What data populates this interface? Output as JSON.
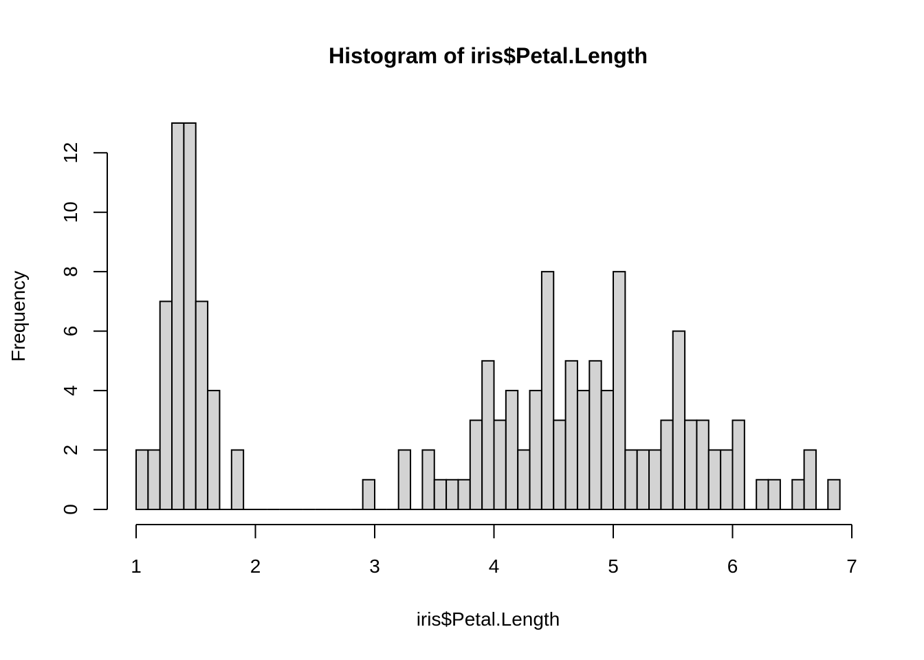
{
  "chart_data": {
    "type": "bar",
    "title": "Histogram of iris$Petal.Length",
    "xlabel": "iris$Petal.Length",
    "ylabel": "Frequency",
    "bar_color": "#d3d3d3",
    "border_color": "#000000",
    "bin_width": 0.1,
    "x_start": 1.0,
    "values": [
      2,
      2,
      7,
      13,
      13,
      7,
      4,
      0,
      2,
      0,
      0,
      0,
      0,
      0,
      0,
      0,
      0,
      0,
      0,
      1,
      0,
      0,
      2,
      0,
      2,
      1,
      1,
      1,
      3,
      5,
      3,
      4,
      2,
      4,
      8,
      3,
      5,
      4,
      5,
      4,
      8,
      2,
      2,
      2,
      3,
      6,
      3,
      3,
      2,
      2,
      3,
      0,
      1,
      1,
      0,
      1,
      2,
      0,
      1
    ],
    "xlim": [
      1,
      7
    ],
    "ylim": [
      0,
      13
    ],
    "x_ticks": [
      1,
      2,
      3,
      4,
      5,
      6,
      7
    ],
    "y_ticks": [
      0,
      2,
      4,
      6,
      8,
      10,
      12
    ],
    "grid": false,
    "legend": "none"
  }
}
